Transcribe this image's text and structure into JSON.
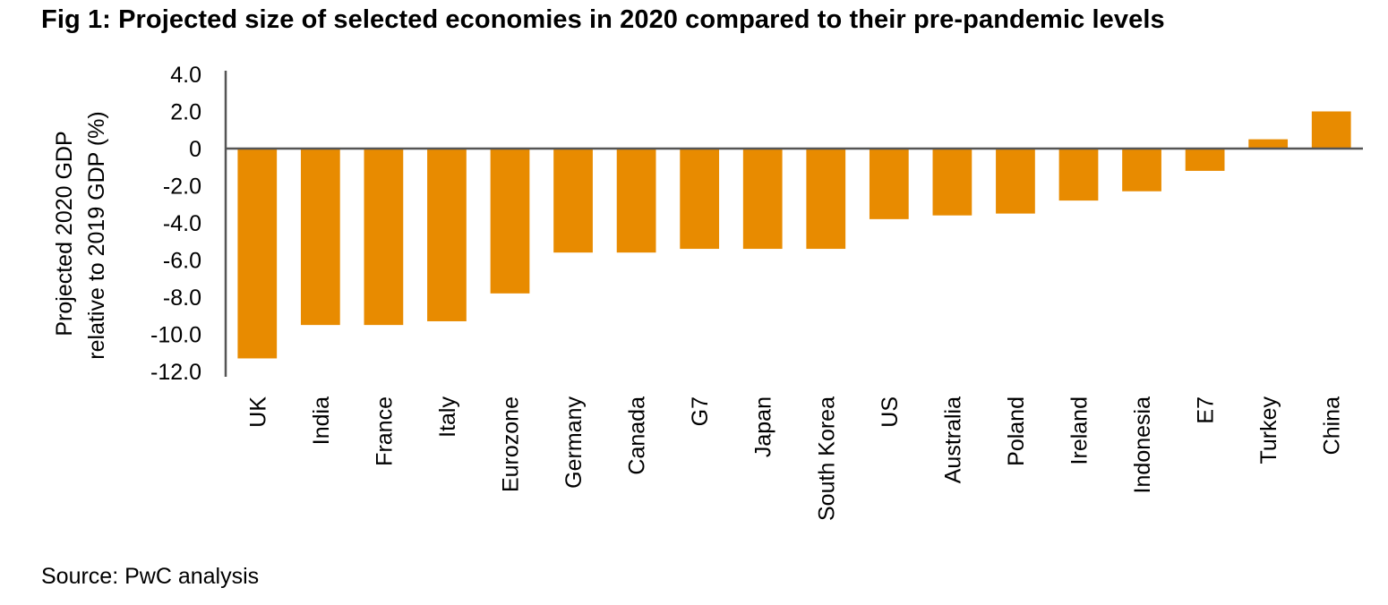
{
  "chart_data": {
    "type": "bar",
    "title": "Fig 1: Projected size of selected economies in 2020 compared to their pre-pandemic levels",
    "xlabel": "",
    "ylabel": [
      "Projected 2020 GDP",
      "relative to 2019 GDP (%)"
    ],
    "ylim": [
      -12.0,
      4.0
    ],
    "yticks": [
      "4.0",
      "2.0",
      "0",
      "-2.0",
      "-4.0",
      "-6.0",
      "-8.0",
      "-10.0",
      "-12.0"
    ],
    "ytick_values": [
      4,
      2,
      0,
      -2,
      -4,
      -6,
      -8,
      -10,
      -12
    ],
    "grid": false,
    "legend": "none",
    "bar_color": "#E88B00",
    "categories": [
      "UK",
      "India",
      "France",
      "Italy",
      "Eurozone",
      "Germany",
      "Canada",
      "G7",
      "Japan",
      "South Korea",
      "US",
      "Australia",
      "Poland",
      "Ireland",
      "Indonesia",
      "E7",
      "Turkey",
      "China"
    ],
    "values": [
      -11.3,
      -9.5,
      -9.5,
      -9.3,
      -7.8,
      -5.6,
      -5.6,
      -5.4,
      -5.4,
      -5.4,
      -3.8,
      -3.6,
      -3.5,
      -2.8,
      -2.3,
      -1.2,
      0.5,
      2.0
    ]
  },
  "source": "Source: PwC analysis"
}
